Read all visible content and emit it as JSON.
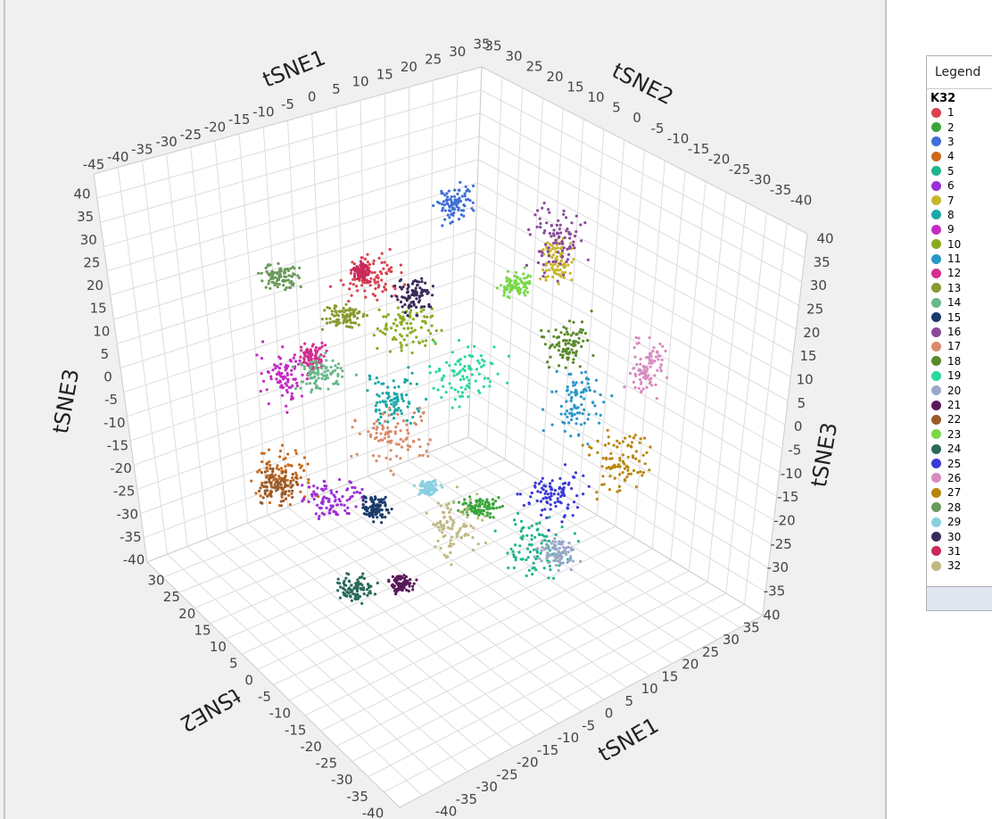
{
  "plot": {
    "axes": [
      {
        "title": "tSNE1",
        "ticks": [
          -45,
          -40,
          -35,
          -30,
          -25,
          -20,
          -15,
          -10,
          -5,
          0,
          5,
          10,
          15,
          20,
          25,
          30,
          35
        ]
      },
      {
        "title": "tSNE2",
        "ticks": [
          35,
          30,
          25,
          20,
          15,
          10,
          5,
          0,
          -5,
          -10,
          -15,
          -20,
          -25,
          -30,
          -35,
          -40
        ]
      },
      {
        "title": "tSNE3",
        "ticks": [
          40,
          35,
          30,
          25,
          20,
          15,
          10,
          5,
          0,
          -5,
          -10,
          -15,
          -20,
          -25,
          -30,
          -35,
          -40
        ]
      },
      {
        "title": "tSNE3",
        "ticks": [
          40,
          35,
          30,
          25,
          20,
          15,
          10,
          5,
          0,
          -5,
          -10,
          -15,
          -20,
          -25,
          -30,
          -35
        ]
      },
      {
        "title": "tSNE2",
        "ticks": [
          30,
          25,
          20,
          15,
          10,
          5,
          0,
          -5,
          -10,
          -15,
          -20,
          -25,
          -30,
          -35,
          -40
        ]
      },
      {
        "title": "tSNE1",
        "ticks": [
          -40,
          -35,
          -30,
          -25,
          -20,
          -15,
          -10,
          -5,
          0,
          5,
          10,
          15,
          20,
          25,
          30,
          35,
          40
        ]
      }
    ]
  },
  "legend": {
    "title": "Legend",
    "group": "K32",
    "items": [
      {
        "label": "1",
        "color": "#d9434f"
      },
      {
        "label": "2",
        "color": "#3aa53a"
      },
      {
        "label": "3",
        "color": "#3f6fd6"
      },
      {
        "label": "4",
        "color": "#c96a1e"
      },
      {
        "label": "5",
        "color": "#1fb58a"
      },
      {
        "label": "6",
        "color": "#9c30d6"
      },
      {
        "label": "7",
        "color": "#c8b62a"
      },
      {
        "label": "8",
        "color": "#1aa8a8"
      },
      {
        "label": "9",
        "color": "#c42bc4"
      },
      {
        "label": "10",
        "color": "#8aab1e"
      },
      {
        "label": "11",
        "color": "#2a98c8"
      },
      {
        "label": "12",
        "color": "#d42f8f"
      },
      {
        "label": "13",
        "color": "#8a9a2e"
      },
      {
        "label": "14",
        "color": "#6ab88a"
      },
      {
        "label": "15",
        "color": "#1a3a6a"
      },
      {
        "label": "16",
        "color": "#8a4a9a"
      },
      {
        "label": "17",
        "color": "#d98a6a"
      },
      {
        "label": "18",
        "color": "#5a8a2a"
      },
      {
        "label": "19",
        "color": "#2ad8a0"
      },
      {
        "label": "20",
        "color": "#9aa8c8"
      },
      {
        "label": "21",
        "color": "#5a1a5a"
      },
      {
        "label": "22",
        "color": "#9a5a2a"
      },
      {
        "label": "23",
        "color": "#7ad84a"
      },
      {
        "label": "24",
        "color": "#2a6a5a"
      },
      {
        "label": "25",
        "color": "#3a3ad8"
      },
      {
        "label": "26",
        "color": "#d88ac0"
      },
      {
        "label": "27",
        "color": "#b8860b"
      },
      {
        "label": "28",
        "color": "#6a9a5a"
      },
      {
        "label": "29",
        "color": "#8ad0e0"
      },
      {
        "label": "30",
        "color": "#3a2a5a"
      },
      {
        "label": "31",
        "color": "#c82a5a"
      },
      {
        "label": "32",
        "color": "#c0b880"
      }
    ]
  }
}
